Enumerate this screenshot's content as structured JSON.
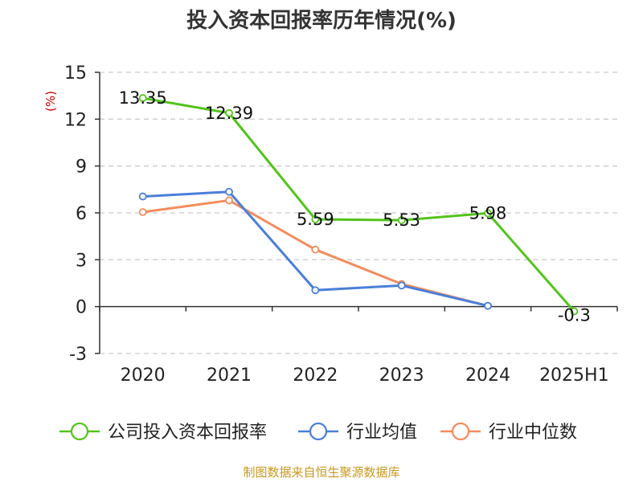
{
  "chart_data": {
    "type": "line",
    "title": "投入资本回报率历年情况(%)",
    "ylabel": "(%)",
    "categories": [
      "2020",
      "2021",
      "2022",
      "2023",
      "2024",
      "2025H1"
    ],
    "y_ticks": [
      "15",
      "12",
      "9",
      "6",
      "3",
      "0",
      "-3"
    ],
    "ylim": [
      -3,
      15
    ],
    "grid": true,
    "legend_position": "bottom",
    "series": [
      {
        "name": "公司投入资本回报率",
        "color": "#52c41a",
        "values": [
          13.35,
          12.39,
          5.59,
          5.53,
          5.98,
          -0.3
        ],
        "labels": [
          "13.35",
          "12.39",
          "5.59",
          "5.53",
          "5.98",
          "-0.3"
        ]
      },
      {
        "name": "行业均值",
        "color": "#4a7fd8",
        "values": [
          7.05,
          7.35,
          1.05,
          1.35,
          0.05,
          null
        ]
      },
      {
        "name": "行业中位数",
        "color": "#f28c5c",
        "values": [
          6.05,
          6.8,
          3.65,
          1.45,
          0.05,
          null
        ]
      }
    ]
  },
  "source": "制图数据来自恒生聚源数据库"
}
